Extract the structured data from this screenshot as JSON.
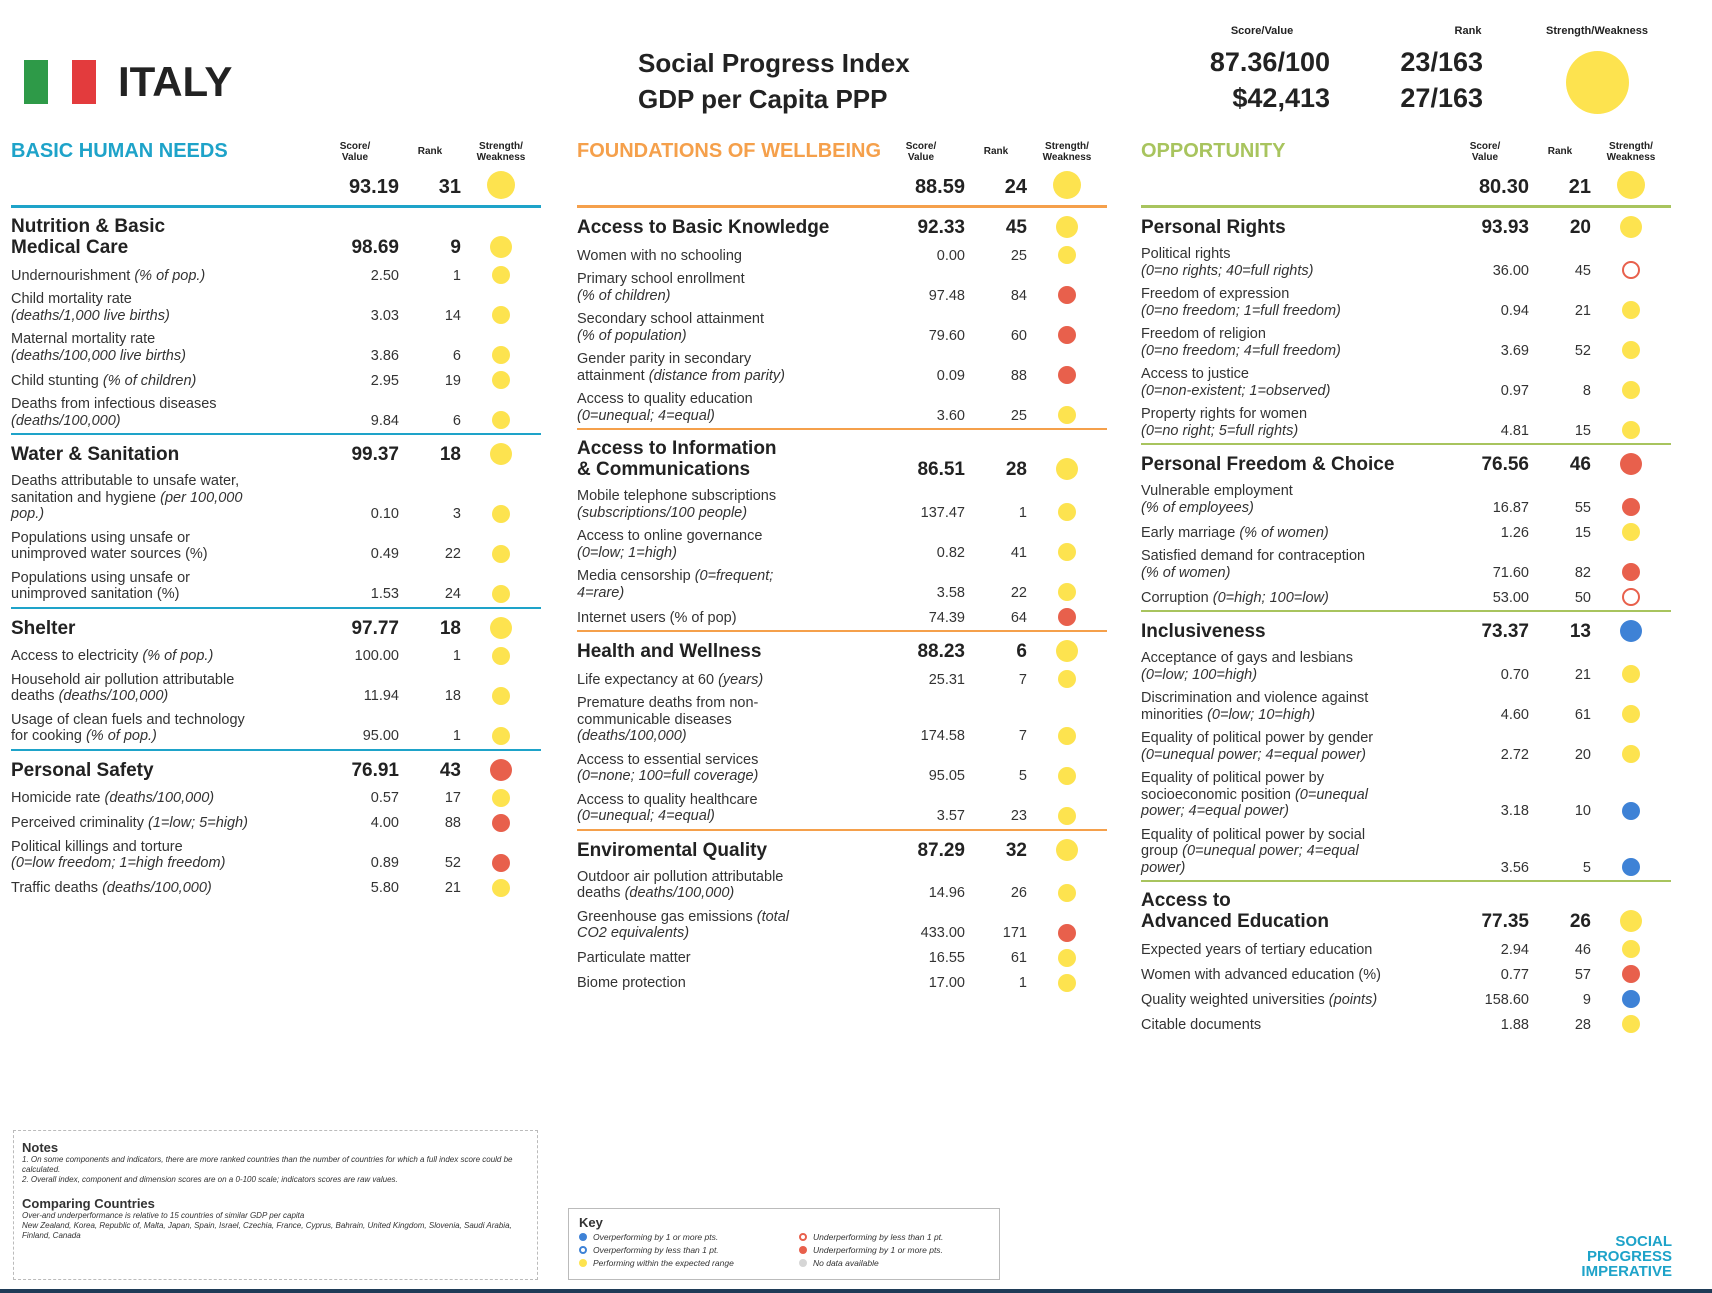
{
  "header": {
    "country": "ITALY",
    "titles": [
      "Social Progress Index",
      "GDP per Capita PPP"
    ],
    "labels": [
      "Score/Value",
      "Rank",
      "Strength/Weakness"
    ],
    "values": [
      "87.36/100",
      "$42,413"
    ],
    "ranks": [
      "23/163",
      "27/163"
    ],
    "strength": "yellow"
  },
  "columns": [
    {
      "title": "BASIC HUMAN NEEDS",
      "color": "#1ea3c9",
      "headers": [
        "Score/\nValue",
        "Rank",
        "Strength/\nWeakness"
      ],
      "score": "93.19",
      "rank": "31",
      "strength": "yellow",
      "components": [
        {
          "name": "Nutrition & Basic\nMedical Care",
          "score": "98.69",
          "rank": "9",
          "strength": "yellow",
          "indicators": [
            {
              "name": "Undernourishment",
              "unit": "(% of pop.)",
              "value": "2.50",
              "rank": "1",
              "strength": "yellow"
            },
            {
              "name": "Child mortality rate\n",
              "unit": "(deaths/1,000 live births)",
              "value": "3.03",
              "rank": "14",
              "strength": "yellow"
            },
            {
              "name": "Maternal mortality rate\n",
              "unit": "(deaths/100,000 live births)",
              "value": "3.86",
              "rank": "6",
              "strength": "yellow"
            },
            {
              "name": "Child stunting",
              "unit": "(% of children)",
              "value": "2.95",
              "rank": "19",
              "strength": "yellow"
            },
            {
              "name": "Deaths from infectious diseases\n",
              "unit": "(deaths/100,000)",
              "value": "9.84",
              "rank": "6",
              "strength": "yellow"
            }
          ]
        },
        {
          "name": "Water & Sanitation",
          "score": "99.37",
          "rank": "18",
          "strength": "yellow",
          "indicators": [
            {
              "name": "Deaths attributable to unsafe water,\nsanitation and hygiene",
              "unit": "(per 100,000\npop.)",
              "value": "0.10",
              "rank": "3",
              "strength": "yellow"
            },
            {
              "name": "Populations using unsafe or\nunimproved water sources (%)",
              "value": "0.49",
              "rank": "22",
              "strength": "yellow"
            },
            {
              "name": "Populations using unsafe or\nunimproved sanitation (%)",
              "value": "1.53",
              "rank": "24",
              "strength": "yellow"
            }
          ]
        },
        {
          "name": "Shelter",
          "score": "97.77",
          "rank": "18",
          "strength": "yellow",
          "indicators": [
            {
              "name": "Access to electricity",
              "unit": "(% of pop.)",
              "value": "100.00",
              "rank": "1",
              "strength": "yellow"
            },
            {
              "name": "Household air pollution attributable\ndeaths",
              "unit": "(deaths/100,000)",
              "value": "11.94",
              "rank": "18",
              "strength": "yellow"
            },
            {
              "name": "Usage of clean fuels and technology\nfor cooking",
              "unit": "(% of pop.)",
              "value": "95.00",
              "rank": "1",
              "strength": "yellow"
            }
          ]
        },
        {
          "name": "Personal Safety",
          "score": "76.91",
          "rank": "43",
          "strength": "red",
          "indicators": [
            {
              "name": "Homicide rate",
              "unit": "(deaths/100,000)",
              "value": "0.57",
              "rank": "17",
              "strength": "yellow"
            },
            {
              "name": "Perceived criminality",
              "unit": "(1=low; 5=high)",
              "value": "4.00",
              "rank": "88",
              "strength": "red"
            },
            {
              "name": "Political killings and torture\n",
              "unit": "(0=low freedom; 1=high freedom)",
              "value": "0.89",
              "rank": "52",
              "strength": "red"
            },
            {
              "name": "Traffic deaths",
              "unit": "(deaths/100,000)",
              "value": "5.80",
              "rank": "21",
              "strength": "yellow"
            }
          ]
        }
      ]
    },
    {
      "title": "FOUNDATIONS OF WELLBEING",
      "color": "#f5a04b",
      "headers": [
        "Score/\nValue",
        "Rank",
        "Strength/\nWeakness"
      ],
      "score": "88.59",
      "rank": "24",
      "strength": "yellow",
      "components": [
        {
          "name": "Access to Basic Knowledge",
          "score": "92.33",
          "rank": "45",
          "strength": "yellow",
          "indicators": [
            {
              "name": "Women with no schooling",
              "value": "0.00",
              "rank": "25",
              "strength": "yellow"
            },
            {
              "name": "Primary school enrollment\n",
              "unit": "(% of children)",
              "value": "97.48",
              "rank": "84",
              "strength": "red"
            },
            {
              "name": "Secondary school attainment\n",
              "unit": "(% of population)",
              "value": "79.60",
              "rank": "60",
              "strength": "red"
            },
            {
              "name": "Gender parity in secondary\nattainment",
              "unit": "(distance from parity)",
              "value": "0.09",
              "rank": "88",
              "strength": "red"
            },
            {
              "name": "Access to quality education\n",
              "unit": "(0=unequal; 4=equal)",
              "value": "3.60",
              "rank": "25",
              "strength": "yellow"
            }
          ]
        },
        {
          "name": "Access to Information\n& Communications",
          "score": "86.51",
          "rank": "28",
          "strength": "yellow",
          "indicators": [
            {
              "name": "Mobile telephone subscriptions\n",
              "unit": "(subscriptions/100 people)",
              "value": "137.47",
              "rank": "1",
              "strength": "yellow"
            },
            {
              "name": "Access to online governance\n",
              "unit": "(0=low; 1=high)",
              "value": "0.82",
              "rank": "41",
              "strength": "yellow"
            },
            {
              "name": "Media censorship",
              "unit": "(0=frequent;\n4=rare)",
              "value": "3.58",
              "rank": "22",
              "strength": "yellow"
            },
            {
              "name": "Internet users (% of pop)",
              "value": "74.39",
              "rank": "64",
              "strength": "red"
            }
          ]
        },
        {
          "name": "Health and Wellness",
          "score": "88.23",
          "rank": "6",
          "strength": "yellow",
          "indicators": [
            {
              "name": "Life expectancy at 60",
              "unit": "(years)",
              "value": "25.31",
              "rank": "7",
              "strength": "yellow"
            },
            {
              "name": "Premature deaths from non-\ncommunicable diseases\n",
              "unit": "(deaths/100,000)",
              "value": "174.58",
              "rank": "7",
              "strength": "yellow"
            },
            {
              "name": "Access to essential services\n",
              "unit": "(0=none; 100=full coverage)",
              "value": "95.05",
              "rank": "5",
              "strength": "yellow"
            },
            {
              "name": "Access to quality healthcare\n",
              "unit": "(0=unequal; 4=equal)",
              "value": "3.57",
              "rank": "23",
              "strength": "yellow"
            }
          ]
        },
        {
          "name": "Enviromental Quality",
          "score": "87.29",
          "rank": "32",
          "strength": "yellow",
          "indicators": [
            {
              "name": "Outdoor air pollution attributable\ndeaths",
              "unit": "(deaths/100,000)",
              "value": "14.96",
              "rank": "26",
              "strength": "yellow"
            },
            {
              "name": "Greenhouse gas emissions",
              "unit": "(total\nCO2 equivalents)",
              "value": "433.00",
              "rank": "171",
              "strength": "red"
            },
            {
              "name": "Particulate matter",
              "value": "16.55",
              "rank": "61",
              "strength": "yellow"
            },
            {
              "name": "Biome protection",
              "value": "17.00",
              "rank": "1",
              "strength": "yellow"
            }
          ]
        }
      ]
    },
    {
      "title": "OPPORTUNITY",
      "color": "#a8c45e",
      "headers": [
        "Score/\nValue",
        "Rank",
        "Strength/\nWeakness"
      ],
      "score": "80.30",
      "rank": "21",
      "strength": "yellow",
      "components": [
        {
          "name": "Personal Rights",
          "score": "93.93",
          "rank": "20",
          "strength": "yellow",
          "indicators": [
            {
              "name": "Political rights\n",
              "unit": "(0=no rights; 40=full rights)",
              "value": "36.00",
              "rank": "45",
              "strength": "red-open"
            },
            {
              "name": "Freedom of expression\n",
              "unit": "(0=no freedom; 1=full freedom)",
              "value": "0.94",
              "rank": "21",
              "strength": "yellow"
            },
            {
              "name": "Freedom of religion\n",
              "unit": "(0=no freedom; 4=full freedom)",
              "value": "3.69",
              "rank": "52",
              "strength": "yellow"
            },
            {
              "name": "Access to justice\n",
              "unit": "(0=non-existent; 1=observed)",
              "value": "0.97",
              "rank": "8",
              "strength": "yellow"
            },
            {
              "name": "Property rights for women\n",
              "unit": "(0=no right; 5=full rights)",
              "value": "4.81",
              "rank": "15",
              "strength": "yellow"
            }
          ]
        },
        {
          "name": "Personal Freedom & Choice",
          "score": "76.56",
          "rank": "46",
          "strength": "red",
          "indicators": [
            {
              "name": "Vulnerable employment\n",
              "unit": "(% of employees)",
              "value": "16.87",
              "rank": "55",
              "strength": "red"
            },
            {
              "name": "Early marriage",
              "unit": "(% of women)",
              "value": "1.26",
              "rank": "15",
              "strength": "yellow"
            },
            {
              "name": "Satisfied demand for contraception\n",
              "unit": "(% of women)",
              "value": "71.60",
              "rank": "82",
              "strength": "red"
            },
            {
              "name": "Corruption",
              "unit": "(0=high; 100=low)",
              "value": "53.00",
              "rank": "50",
              "strength": "red-open"
            }
          ]
        },
        {
          "name": "Inclusiveness",
          "score": "73.37",
          "rank": "13",
          "strength": "blue",
          "indicators": [
            {
              "name": "Acceptance of gays and lesbians\n",
              "unit": "(0=low; 100=high)",
              "value": "0.70",
              "rank": "21",
              "strength": "yellow"
            },
            {
              "name": "Discrimination and violence against\nminorities",
              "unit": "(0=low; 10=high)",
              "value": "4.60",
              "rank": "61",
              "strength": "yellow"
            },
            {
              "name": "Equality of political power by gender\n",
              "unit": "(0=unequal power; 4=equal power)",
              "value": "2.72",
              "rank": "20",
              "strength": "yellow"
            },
            {
              "name": "Equality of political power by\nsocioeconomic position",
              "unit": "(0=unequal\npower; 4=equal power)",
              "value": "3.18",
              "rank": "10",
              "strength": "blue"
            },
            {
              "name": "Equality of political power by social\ngroup",
              "unit": "(0=unequal power; 4=equal\npower)",
              "value": "3.56",
              "rank": "5",
              "strength": "blue"
            }
          ]
        },
        {
          "name": "Access to\nAdvanced Education",
          "score": "77.35",
          "rank": "26",
          "strength": "yellow",
          "indicators": [
            {
              "name": "Expected years of tertiary education",
              "value": "2.94",
              "rank": "46",
              "strength": "yellow"
            },
            {
              "name": "Women with advanced education (%)",
              "value": "0.77",
              "rank": "57",
              "strength": "red"
            },
            {
              "name": "Quality weighted universities",
              "unit": "(points)",
              "value": "158.60",
              "rank": "9",
              "strength": "blue"
            },
            {
              "name": "Citable documents",
              "value": "1.88",
              "rank": "28",
              "strength": "yellow"
            }
          ]
        }
      ]
    }
  ],
  "notes": {
    "title": "Notes",
    "lines": [
      "1. On some components and indicators, there are more ranked countries than the number of countries for which a full index score could be calculated.",
      "2. Overall index, component and dimension scores are on a 0-100 scale; indicators scores are raw values."
    ],
    "comparing_title": "Comparing Countries",
    "comparing_lines": [
      "Over-and underperformance is relative to 15 countries of similar GDP per capita",
      "New Zealand, Korea, Republic of, Malta, Japan, Spain, Israel, Czechia, France, Cyprus, Bahrain, United Kingdom, Slovenia, Saudi Arabia, Finland, Canada"
    ]
  },
  "key": {
    "title": "Key",
    "items": [
      {
        "symbol": "blue",
        "label": "Overperforming by 1 or more pts."
      },
      {
        "symbol": "blue-open",
        "label": "Overperforming by less than 1 pt."
      },
      {
        "symbol": "yellow",
        "label": "Performing within the expected range"
      },
      {
        "symbol": "red-open",
        "label": "Underperforming by less than 1 pt."
      },
      {
        "symbol": "red",
        "label": "Underperforming by 1 or more pts."
      },
      {
        "symbol": "grey",
        "label": "No data available"
      }
    ]
  },
  "logo": "SOCIAL\nPROGRESS\nIMPERATIVE"
}
